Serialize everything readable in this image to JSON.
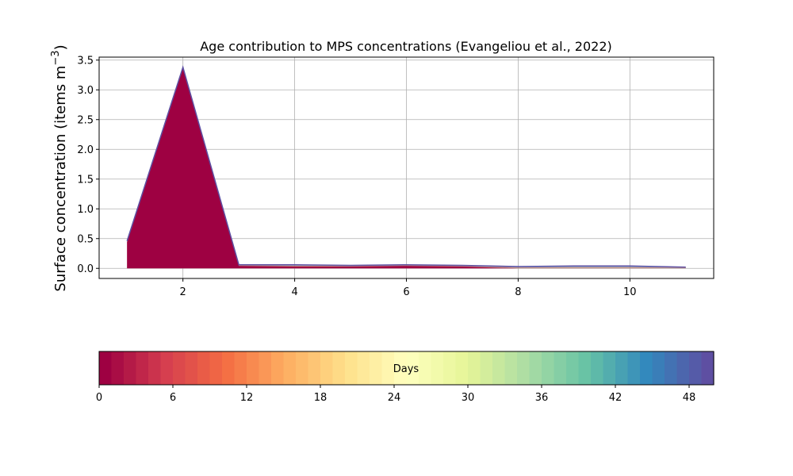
{
  "chart_data": {
    "type": "area",
    "title": "Age contribution to MPS concentrations (Evangeliou et al., 2022)",
    "ylabel_main": "Surface concentration (items m",
    "ylabel_exp": "−3",
    "ylabel_close": ")",
    "xlim": [
      0.5,
      11.5
    ],
    "ylim": [
      -0.17,
      3.55
    ],
    "xticks": [
      2,
      4,
      6,
      8,
      10
    ],
    "yticks": [
      0.0,
      0.5,
      1.0,
      1.5,
      2.0,
      2.5,
      3.0,
      3.5
    ],
    "ytick_labels": [
      "0.0",
      "0.5",
      "1.0",
      "1.5",
      "2.0",
      "2.5",
      "3.0",
      "3.5"
    ],
    "grid": true,
    "x": [
      1,
      2,
      3,
      4,
      5,
      6,
      7,
      8,
      9,
      10,
      11
    ],
    "dominant_series_color": "#9e0142",
    "outline_color": "#5e4fa2",
    "total": [
      0.46,
      3.38,
      0.06,
      0.06,
      0.05,
      0.06,
      0.05,
      0.03,
      0.04,
      0.04,
      0.02
    ],
    "dominant": [
      0.44,
      3.36,
      0.04,
      0.03,
      0.03,
      0.04,
      0.03,
      0.0,
      0.0,
      0.0,
      0.0
    ],
    "colorbar": {
      "label": "Days",
      "range": [
        0,
        50
      ],
      "ticks": [
        0,
        6,
        12,
        18,
        24,
        30,
        36,
        42,
        48
      ],
      "tick_labels": [
        "0",
        "6",
        "12",
        "18",
        "24",
        "30",
        "36",
        "42",
        "48"
      ],
      "levels": 50,
      "colormap": [
        "#9e0142",
        "#d53e4f",
        "#f46d43",
        "#fdae61",
        "#fee08b",
        "#ffffbf",
        "#e6f598",
        "#abdda4",
        "#66c2a5",
        "#3288bd",
        "#5e4fa2"
      ]
    }
  }
}
